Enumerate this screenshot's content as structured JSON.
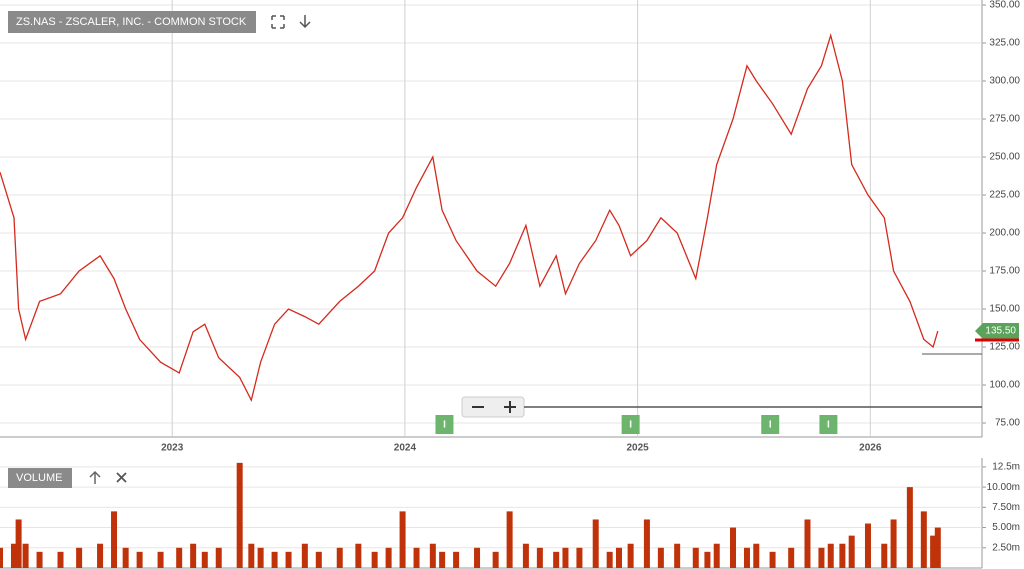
{
  "chart_data": [
    {
      "type": "line",
      "title": "ZS.NAS - ZSCALER, INC. - COMMON STOCK",
      "x": [
        2022.26,
        2022.32,
        2022.34,
        2022.37,
        2022.43,
        2022.52,
        2022.6,
        2022.69,
        2022.75,
        2022.8,
        2022.86,
        2022.95,
        2023.03,
        2023.09,
        2023.14,
        2023.2,
        2023.29,
        2023.34,
        2023.38,
        2023.44,
        2023.5,
        2023.57,
        2023.63,
        2023.72,
        2023.8,
        2023.87,
        2023.93,
        2023.99,
        2024.05,
        2024.12,
        2024.16,
        2024.22,
        2024.31,
        2024.39,
        2024.45,
        2024.52,
        2024.58,
        2024.65,
        2024.69,
        2024.75,
        2024.82,
        2024.88,
        2024.92,
        2024.97,
        2025.04,
        2025.1,
        2025.17,
        2025.25,
        2025.3,
        2025.34,
        2025.41,
        2025.47,
        2025.51,
        2025.58,
        2025.66,
        2025.73,
        2025.79,
        2025.83,
        2025.88,
        2025.92,
        2025.99,
        2026.06,
        2026.1,
        2026.17,
        2026.23,
        2026.27,
        2026.29
      ],
      "series": [
        {
          "color": "#d42a1e",
          "values": [
            240,
            210,
            150,
            130,
            155,
            160,
            175,
            185,
            170,
            150,
            130,
            115,
            108,
            135,
            140,
            118,
            105,
            90,
            115,
            140,
            150,
            145,
            140,
            155,
            165,
            175,
            200,
            210,
            230,
            250,
            215,
            195,
            175,
            165,
            180,
            205,
            165,
            185,
            160,
            180,
            195,
            215,
            205,
            185,
            195,
            210,
            200,
            170,
            210,
            245,
            275,
            310,
            300,
            285,
            265,
            295,
            310,
            330,
            300,
            245,
            225,
            210,
            175,
            155,
            130,
            125,
            135.5
          ]
        }
      ],
      "xlim": [
        2022.26,
        2026.48
      ],
      "xticks": [
        2023,
        2024,
        2025,
        2026
      ],
      "ylim": [
        65.8,
        353.3
      ],
      "yticks": [
        {
          "value": 75,
          "label": "75.00"
        },
        {
          "value": 100,
          "label": "100.00"
        },
        {
          "value": 125,
          "label": "125.00"
        },
        {
          "value": 150,
          "label": "150.00"
        },
        {
          "value": 175,
          "label": "175.00"
        },
        {
          "value": 200,
          "label": "200.00"
        },
        {
          "value": 225,
          "label": "225.00"
        },
        {
          "value": 250,
          "label": "250.00"
        },
        {
          "value": 275,
          "label": "275.00"
        },
        {
          "value": 300,
          "label": "300.00"
        },
        {
          "value": 325,
          "label": "325.00"
        },
        {
          "value": 350,
          "label": "350.00"
        }
      ],
      "grid": true,
      "last_price": {
        "value": 135.5,
        "label": "135.50"
      },
      "events": [
        {
          "x": 2024.17,
          "label": "I"
        },
        {
          "x": 2024.97,
          "label": "I"
        },
        {
          "x": 2025.57,
          "label": "I"
        },
        {
          "x": 2025.82,
          "label": "I"
        }
      ]
    },
    {
      "type": "bar",
      "title": "VOLUME",
      "x": [
        2022.26,
        2022.32,
        2022.34,
        2022.37,
        2022.43,
        2022.52,
        2022.6,
        2022.69,
        2022.75,
        2022.8,
        2022.86,
        2022.95,
        2023.03,
        2023.09,
        2023.14,
        2023.2,
        2023.29,
        2023.34,
        2023.38,
        2023.44,
        2023.5,
        2023.57,
        2023.63,
        2023.72,
        2023.8,
        2023.87,
        2023.93,
        2023.99,
        2024.05,
        2024.12,
        2024.16,
        2024.22,
        2024.31,
        2024.39,
        2024.45,
        2024.52,
        2024.58,
        2024.65,
        2024.69,
        2024.75,
        2024.82,
        2024.88,
        2024.92,
        2024.97,
        2025.04,
        2025.1,
        2025.17,
        2025.25,
        2025.3,
        2025.34,
        2025.41,
        2025.47,
        2025.51,
        2025.58,
        2025.66,
        2025.73,
        2025.79,
        2025.83,
        2025.88,
        2025.92,
        2025.99,
        2026.06,
        2026.1,
        2026.17,
        2026.23,
        2026.27,
        2026.29
      ],
      "values": [
        2.5,
        3,
        6,
        3,
        2,
        2,
        2.5,
        3,
        7,
        2.5,
        2,
        2,
        2.5,
        3,
        2,
        2.5,
        13,
        3,
        2.5,
        2,
        2,
        3,
        2,
        2.5,
        3,
        2,
        2.5,
        7,
        2.5,
        3,
        2,
        2,
        2.5,
        2,
        7,
        3,
        2.5,
        2,
        2.5,
        2.5,
        6,
        2,
        2.5,
        3,
        6,
        2.5,
        3,
        2.5,
        2,
        3,
        5,
        2.5,
        3,
        2,
        2.5,
        6,
        2.5,
        3,
        3,
        4,
        5.5,
        3,
        6,
        10,
        7,
        4,
        5
      ],
      "color": "#c0330a",
      "xlim": [
        2022.26,
        2026.48
      ],
      "ylim": [
        0,
        13.6
      ],
      "yticks": [
        {
          "value": 2.5,
          "label": "2.50m"
        },
        {
          "value": 5,
          "label": "5.00m"
        },
        {
          "value": 7.5,
          "label": "7.50m"
        },
        {
          "value": 10,
          "label": "10.00m"
        },
        {
          "value": 12.5,
          "label": "12.5m"
        }
      ],
      "grid": true
    }
  ]
}
